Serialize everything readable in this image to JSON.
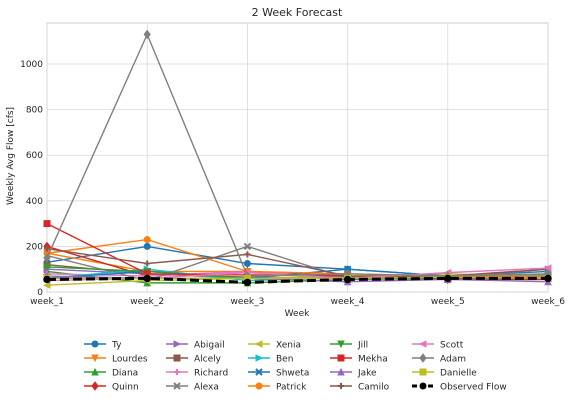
{
  "chart_data": {
    "type": "line",
    "title": "2 Week Forecast",
    "xlabel": "Week",
    "ylabel": "Weekly Avg Flow [cfs]",
    "categories": [
      "week_1",
      "week_2",
      "week_3",
      "week_4",
      "week_5",
      "week_6"
    ],
    "yticks": [
      0,
      200,
      400,
      600,
      800,
      1000
    ],
    "ylim": [
      0,
      1180
    ],
    "grid": true,
    "legend_position": "below",
    "series": [
      {
        "name": "Ty",
        "color": "#1f77b4",
        "marker": "circle",
        "values": [
          130,
          200,
          125,
          100,
          70,
          90
        ]
      },
      {
        "name": "Lourdes",
        "color": "#ff7f0e",
        "marker": "triangle-down",
        "values": [
          170,
          90,
          90,
          70,
          60,
          70
        ]
      },
      {
        "name": "Diana",
        "color": "#2ca02c",
        "marker": "triangle-up",
        "values": [
          90,
          40,
          40,
          55,
          60,
          60
        ]
      },
      {
        "name": "Quinn",
        "color": "#d62728",
        "marker": "diamond",
        "values": [
          200,
          70,
          90,
          70,
          55,
          55
        ]
      },
      {
        "name": "Abigail",
        "color": "#9467bd",
        "marker": "triangle-right",
        "values": [
          100,
          80,
          60,
          60,
          65,
          70
        ]
      },
      {
        "name": "Alcely",
        "color": "#8c564b",
        "marker": "square",
        "values": [
          120,
          80,
          65,
          60,
          65,
          65
        ]
      },
      {
        "name": "Richard",
        "color": "#e377c2",
        "marker": "plus",
        "values": [
          80,
          70,
          90,
          65,
          70,
          100
        ]
      },
      {
        "name": "Alexa",
        "color": "#7f7f7f",
        "marker": "x",
        "values": [
          160,
          50,
          200,
          60,
          65,
          100
        ]
      },
      {
        "name": "Xenia",
        "color": "#bcbd22",
        "marker": "triangle-left",
        "values": [
          30,
          50,
          60,
          70,
          80,
          65
        ]
      },
      {
        "name": "Ben",
        "color": "#17becf",
        "marker": "triangle-right",
        "values": [
          60,
          100,
          50,
          65,
          70,
          75
        ]
      },
      {
        "name": "Shweta",
        "color": "#1f77b4",
        "marker": "x",
        "values": [
          60,
          90,
          60,
          100,
          70,
          70
        ]
      },
      {
        "name": "Patrick",
        "color": "#ff7f0e",
        "marker": "circle",
        "values": [
          170,
          230,
          90,
          80,
          70,
          70
        ]
      },
      {
        "name": "Jill",
        "color": "#2ca02c",
        "marker": "triangle-down",
        "values": [
          110,
          90,
          60,
          60,
          55,
          60
        ]
      },
      {
        "name": "Mekha",
        "color": "#d62728",
        "marker": "square",
        "values": [
          300,
          80,
          75,
          70,
          60,
          60
        ]
      },
      {
        "name": "Jake",
        "color": "#9467bd",
        "marker": "triangle-up",
        "values": [
          70,
          60,
          60,
          45,
          55,
          45
        ]
      },
      {
        "name": "Camilo",
        "color": "#8c564b",
        "marker": "plus",
        "values": [
          190,
          125,
          165,
          70,
          70,
          100
        ]
      },
      {
        "name": "Scott",
        "color": "#e377c2",
        "marker": "triangle-left",
        "values": [
          50,
          60,
          85,
          60,
          85,
          105
        ]
      },
      {
        "name": "Adam",
        "color": "#7f7f7f",
        "marker": "diamond",
        "values": [
          150,
          1130,
          70,
          80,
          70,
          80
        ]
      },
      {
        "name": "Danielle",
        "color": "#bcbd22",
        "marker": "square",
        "values": [
          60,
          60,
          60,
          60,
          65,
          60
        ]
      },
      {
        "name": "Observed Flow",
        "color": "#000000",
        "marker": "circle",
        "dashed": true,
        "values": [
          55,
          60,
          42,
          55,
          60,
          60
        ]
      }
    ]
  }
}
